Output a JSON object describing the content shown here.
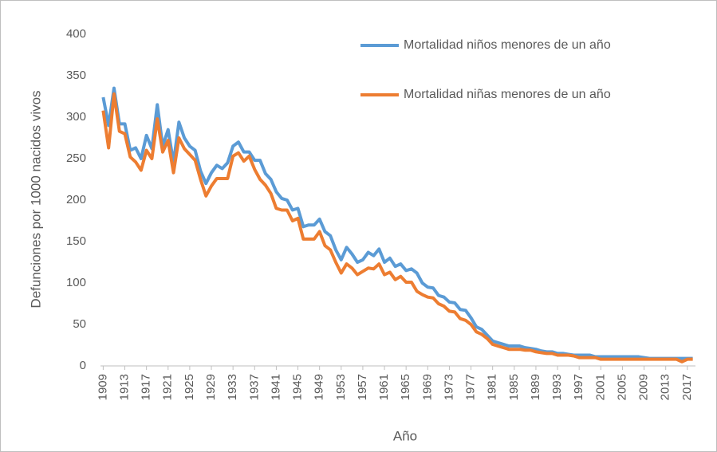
{
  "chart_data": {
    "type": "line",
    "x_label": "Año",
    "y_label": "Defunciones por 1000 nacidos vivos",
    "x": [
      1909,
      1910,
      1911,
      1912,
      1913,
      1914,
      1915,
      1916,
      1917,
      1918,
      1919,
      1920,
      1921,
      1922,
      1923,
      1924,
      1925,
      1926,
      1927,
      1928,
      1929,
      1930,
      1931,
      1932,
      1933,
      1934,
      1935,
      1936,
      1937,
      1938,
      1939,
      1940,
      1941,
      1942,
      1943,
      1944,
      1945,
      1946,
      1947,
      1948,
      1949,
      1950,
      1951,
      1952,
      1953,
      1954,
      1955,
      1956,
      1957,
      1958,
      1959,
      1960,
      1961,
      1962,
      1963,
      1964,
      1965,
      1966,
      1967,
      1968,
      1969,
      1970,
      1971,
      1972,
      1973,
      1974,
      1975,
      1976,
      1977,
      1978,
      1979,
      1980,
      1981,
      1982,
      1983,
      1984,
      1985,
      1986,
      1987,
      1988,
      1989,
      1990,
      1991,
      1992,
      1993,
      1994,
      1995,
      1996,
      1997,
      1998,
      1999,
      2000,
      2001,
      2002,
      2003,
      2004,
      2005,
      2006,
      2007,
      2008,
      2009,
      2010,
      2011,
      2012,
      2013,
      2014,
      2015,
      2016,
      2017,
      2018
    ],
    "series": [
      {
        "name": "Mortalidad niños menores de un año",
        "color": "#5b9bd5",
        "values": [
          324,
          290,
          335,
          292,
          292,
          260,
          263,
          250,
          278,
          262,
          315,
          265,
          285,
          245,
          294,
          275,
          265,
          260,
          235,
          220,
          233,
          242,
          238,
          245,
          265,
          270,
          258,
          258,
          248,
          248,
          232,
          225,
          210,
          202,
          200,
          188,
          190,
          168,
          170,
          170,
          177,
          162,
          157,
          140,
          128,
          143,
          135,
          125,
          128,
          137,
          133,
          141,
          125,
          130,
          120,
          123,
          115,
          117,
          112,
          100,
          95,
          94,
          85,
          83,
          77,
          76,
          68,
          67,
          58,
          47,
          44,
          37,
          30,
          28,
          26,
          24,
          24,
          24,
          22,
          21,
          20,
          18,
          17,
          17,
          15,
          15,
          14,
          13,
          13,
          13,
          13,
          11,
          11,
          11,
          11,
          11,
          11,
          11,
          11,
          11,
          10,
          9,
          9,
          9,
          9,
          9,
          9,
          9,
          9,
          9
        ]
      },
      {
        "name": "Mortalidad niñas menores de un año",
        "color": "#ed7d31",
        "values": [
          308,
          263,
          328,
          283,
          280,
          252,
          246,
          236,
          260,
          250,
          298,
          258,
          272,
          233,
          275,
          262,
          255,
          248,
          225,
          205,
          217,
          226,
          226,
          226,
          253,
          257,
          247,
          253,
          237,
          225,
          218,
          208,
          190,
          188,
          188,
          175,
          178,
          153,
          153,
          153,
          162,
          145,
          140,
          125,
          112,
          123,
          118,
          110,
          114,
          118,
          117,
          123,
          110,
          113,
          104,
          108,
          101,
          101,
          90,
          86,
          83,
          82,
          75,
          72,
          66,
          65,
          57,
          55,
          50,
          41,
          38,
          33,
          26,
          24,
          22,
          20,
          20,
          20,
          19,
          19,
          17,
          16,
          15,
          15,
          13,
          13,
          13,
          12,
          10,
          10,
          10,
          10,
          8,
          8,
          8,
          8,
          8,
          8,
          8,
          8,
          8,
          8,
          8,
          8,
          8,
          8,
          8,
          5,
          8,
          8
        ]
      }
    ],
    "xlim": [
      1908.5,
      2018.5
    ],
    "xticks": [
      1909,
      1913,
      1917,
      1921,
      1925,
      1929,
      1933,
      1937,
      1941,
      1945,
      1949,
      1953,
      1957,
      1961,
      1965,
      1969,
      1973,
      1977,
      1981,
      1985,
      1989,
      1993,
      1997,
      2001,
      2005,
      2009,
      2013,
      2017
    ],
    "ylim": [
      0,
      400
    ],
    "yticks": [
      0,
      50,
      100,
      150,
      200,
      250,
      300,
      350,
      400
    ],
    "legend": "top-right"
  }
}
